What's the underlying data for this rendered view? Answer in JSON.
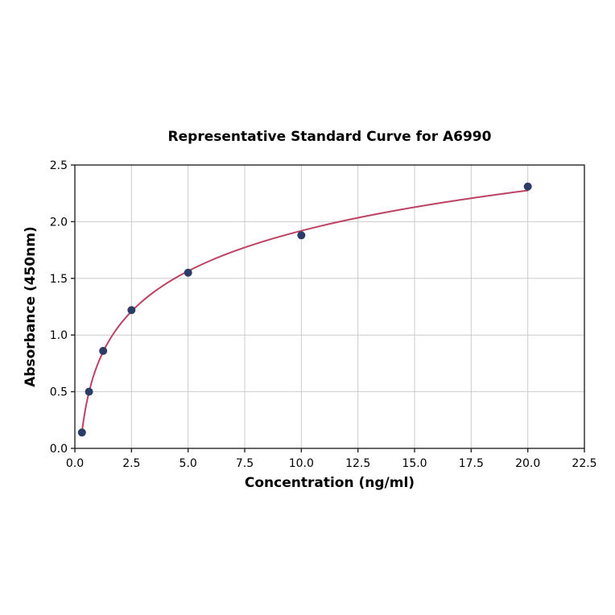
{
  "chart_data": {
    "type": "scatter",
    "title": "Representative Standard Curve for A6990",
    "xlabel": "Concentration (ng/ml)",
    "ylabel": "Absorbance (450nm)",
    "x": [
      0.3125,
      0.625,
      1.25,
      2.5,
      5.0,
      10.0,
      20.0
    ],
    "y": [
      0.14,
      0.5,
      0.86,
      1.22,
      1.55,
      1.88,
      2.31
    ],
    "fit": "smooth logarithmic standard-curve fit drawn through the points from x=0.3125 to x=20",
    "xlim": [
      0,
      22.5
    ],
    "ylim": [
      0,
      2.5
    ],
    "xticks": [
      0,
      2.5,
      5,
      7.5,
      10,
      12.5,
      15,
      17.5,
      20,
      22.5
    ],
    "xtick_labels": [
      "0.0",
      "2.5",
      "5.0",
      "7.5",
      "10.0",
      "12.5",
      "15.0",
      "17.5",
      "20.0",
      "22.5"
    ],
    "yticks": [
      0,
      0.5,
      1,
      1.5,
      2,
      2.5
    ],
    "ytick_labels": [
      "0.0",
      "0.5",
      "1.0",
      "1.5",
      "2.0",
      "2.5"
    ],
    "grid": true,
    "legend": false,
    "colors": {
      "curve": "#bc4362",
      "marker": "#2b3d66",
      "grid": "#cccccc",
      "spine": "#262626",
      "text": "#000000",
      "background": "#ffffff"
    }
  }
}
